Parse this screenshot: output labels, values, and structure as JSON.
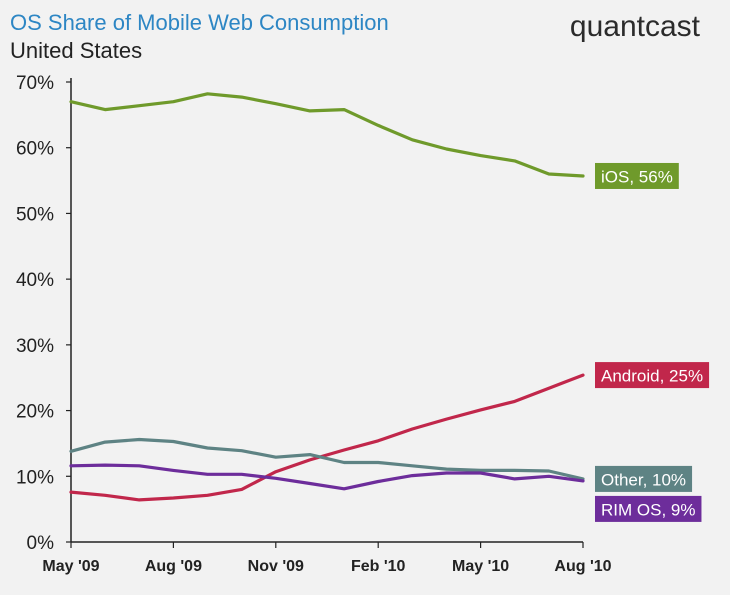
{
  "header": {
    "title": "OS Share of Mobile Web Consumption",
    "subtitle": "United States",
    "brand": "quantcast"
  },
  "colors": {
    "title": "#2d86c4",
    "axis": "#222222",
    "background": "#f2f2f2"
  },
  "chart_data": {
    "type": "line",
    "title": "OS Share of Mobile Web Consumption",
    "subtitle": "United States",
    "xlabel": "",
    "ylabel": "",
    "ylim": [
      0,
      70
    ],
    "grid": false,
    "legend": "inline labels at line ends",
    "y_ticks": [
      {
        "value": 0,
        "label": "0%"
      },
      {
        "value": 10,
        "label": "10%"
      },
      {
        "value": 20,
        "label": "20%"
      },
      {
        "value": 30,
        "label": "30%"
      },
      {
        "value": 40,
        "label": "40%"
      },
      {
        "value": 50,
        "label": "50%"
      },
      {
        "value": 60,
        "label": "60%"
      },
      {
        "value": 70,
        "label": "70%"
      }
    ],
    "x_ticks": [
      {
        "x": "2009-05",
        "label": "May '09"
      },
      {
        "x": "2009-08",
        "label": "Aug '09"
      },
      {
        "x": "2009-11",
        "label": "Nov '09"
      },
      {
        "x": "2010-02",
        "label": "Feb '10"
      },
      {
        "x": "2010-05",
        "label": "May '10"
      },
      {
        "x": "2010-08",
        "label": "Aug '10"
      }
    ],
    "x": [
      "2009-05",
      "2009-06",
      "2009-07",
      "2009-08",
      "2009-09",
      "2009-10",
      "2009-11",
      "2009-12",
      "2010-01",
      "2010-02",
      "2010-03",
      "2010-04",
      "2010-05",
      "2010-06",
      "2010-07",
      "2010-08"
    ],
    "series": [
      {
        "name": "iOS",
        "label": "iOS, 56%",
        "color": "#6f9a2b",
        "values": [
          67,
          65.8,
          66.4,
          67,
          68.2,
          67.7,
          66.7,
          65.6,
          65.8,
          63.4,
          61.2,
          59.8,
          58.8,
          58,
          56,
          55.7
        ]
      },
      {
        "name": "Android",
        "label": "Android, 25%",
        "color": "#c1274b",
        "values": [
          7.6,
          7.1,
          6.4,
          6.7,
          7.1,
          8,
          10.7,
          12.5,
          14,
          15.4,
          17.2,
          18.7,
          20.1,
          21.4,
          23.4,
          25.4
        ]
      },
      {
        "name": "Other",
        "label": "Other, 10%",
        "color": "#5e8384",
        "values": [
          13.8,
          15.2,
          15.6,
          15.3,
          14.3,
          13.9,
          12.9,
          13.3,
          12.1,
          12.1,
          11.6,
          11.1,
          10.9,
          10.9,
          10.8,
          9.6
        ]
      },
      {
        "name": "RIM OS",
        "label": "RIM OS, 9%",
        "color": "#6d2d9b",
        "values": [
          11.6,
          11.7,
          11.6,
          10.9,
          10.3,
          10.3,
          9.7,
          8.9,
          8.1,
          9.2,
          10.1,
          10.5,
          10.5,
          9.6,
          10,
          9.3
        ]
      }
    ]
  }
}
